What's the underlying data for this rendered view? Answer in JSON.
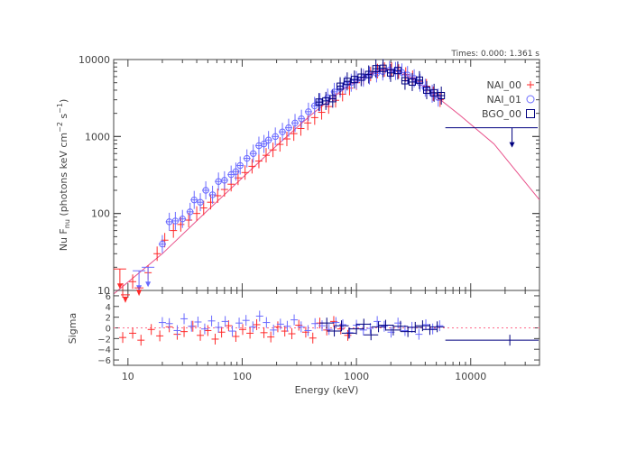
{
  "chart_data": [
    {
      "type": "scatter",
      "panel": "spectrum",
      "times_label": "Times: 0.000: 1.361 s",
      "ylabel": "Nu F",
      "ylabel_sub": "nu",
      "ylabel_units": " (photons keV cm",
      "ylabel_exp1": "−2",
      "ylabel_s": " s",
      "ylabel_exp2": "−1",
      "ylabel_close": ")",
      "x_scale": "log",
      "y_scale": "log",
      "xlim": [
        7.5,
        40000
      ],
      "ylim": [
        10,
        10000
      ],
      "y_ticks": [
        10,
        100,
        1000,
        10000
      ],
      "y_tick_labels": [
        "10",
        "100",
        "1000",
        "10000"
      ],
      "legend_position": "top-right",
      "series": [
        {
          "name": "NAI_00",
          "marker": "cross",
          "color": "#ff2a2a",
          "points": [
            [
              9,
              10
            ],
            [
              11,
              13
            ],
            [
              15,
              17
            ],
            [
              18,
              30
            ],
            [
              21,
              45
            ],
            [
              25,
              60
            ],
            [
              29,
              72
            ],
            [
              34,
              82
            ],
            [
              40,
              100
            ],
            [
              46,
              118
            ],
            [
              53,
              140
            ],
            [
              61,
              170
            ],
            [
              70,
              205
            ],
            [
              80,
              240
            ],
            [
              92,
              290
            ],
            [
              106,
              340
            ],
            [
              122,
              410
            ],
            [
              140,
              480
            ],
            [
              162,
              570
            ],
            [
              186,
              670
            ],
            [
              214,
              790
            ],
            [
              246,
              930
            ],
            [
              283,
              1090
            ],
            [
              326,
              1270
            ],
            [
              375,
              1500
            ],
            [
              431,
              1760
            ],
            [
              496,
              2060
            ],
            [
              571,
              2450
            ],
            [
              657,
              2950
            ],
            [
              756,
              3550
            ],
            [
              870,
              4250
            ],
            [
              1000,
              5000
            ],
            [
              1150,
              5800
            ],
            [
              1330,
              6500
            ],
            [
              1530,
              7100
            ],
            [
              1760,
              7400
            ],
            [
              2030,
              7400
            ],
            [
              2340,
              7000
            ],
            [
              2700,
              6400
            ],
            [
              3100,
              5800
            ],
            [
              3570,
              5200
            ],
            [
              4100,
              4500
            ],
            [
              4700,
              3600
            ],
            [
              5400,
              3000
            ]
          ]
        },
        {
          "name": "NAI_01",
          "marker": "circle",
          "color": "#6b6bff",
          "points": [
            [
              20,
              40
            ],
            [
              23,
              78
            ],
            [
              26,
              80
            ],
            [
              30,
              85
            ],
            [
              35,
              105
            ],
            [
              38,
              150
            ],
            [
              43,
              140
            ],
            [
              48,
              200
            ],
            [
              55,
              175
            ],
            [
              62,
              260
            ],
            [
              70,
              270
            ],
            [
              80,
              320
            ],
            [
              88,
              350
            ],
            [
              96,
              420
            ],
            [
              110,
              520
            ],
            [
              125,
              600
            ],
            [
              140,
              760
            ],
            [
              155,
              800
            ],
            [
              170,
              900
            ],
            [
              195,
              1000
            ],
            [
              225,
              1150
            ],
            [
              255,
              1300
            ],
            [
              290,
              1500
            ],
            [
              330,
              1700
            ],
            [
              380,
              2100
            ],
            [
              430,
              2500
            ],
            [
              480,
              2800
            ],
            [
              560,
              3200
            ],
            [
              640,
              3800
            ],
            [
              720,
              4200
            ],
            [
              800,
              4700
            ],
            [
              900,
              5000
            ],
            [
              1000,
              5400
            ],
            [
              1150,
              5800
            ],
            [
              1300,
              6200
            ],
            [
              1500,
              6600
            ],
            [
              1700,
              7000
            ],
            [
              1950,
              7300
            ],
            [
              2200,
              7100
            ],
            [
              2500,
              6800
            ],
            [
              2800,
              6300
            ],
            [
              3200,
              5700
            ],
            [
              3600,
              5000
            ],
            [
              4000,
              4300
            ],
            [
              4600,
              3600
            ],
            [
              5200,
              3200
            ]
          ]
        },
        {
          "name": "BGO_00",
          "marker": "square",
          "color": "#00007f",
          "points": [
            [
              470,
              2800
            ],
            [
              540,
              2900
            ],
            [
              620,
              3100
            ],
            [
              720,
              4500
            ],
            [
              830,
              5200
            ],
            [
              960,
              5500
            ],
            [
              1100,
              5900
            ],
            [
              1280,
              6400
            ],
            [
              1480,
              7600
            ],
            [
              1710,
              7700
            ],
            [
              1990,
              6700
            ],
            [
              2300,
              7200
            ],
            [
              2660,
              5300
            ],
            [
              3080,
              5100
            ],
            [
              3560,
              5400
            ],
            [
              4120,
              4000
            ],
            [
              4780,
              3700
            ],
            [
              5530,
              3400
            ]
          ]
        }
      ],
      "upper_limits": [
        {
          "series": "NAI_00",
          "x": 8.5,
          "y": 19
        },
        {
          "series": "NAI_01",
          "x": 12.5,
          "y": 18
        },
        {
          "series": "NAI_01",
          "x": 15,
          "y": 20
        },
        {
          "series": "BGO_00",
          "x": 23000,
          "y": 1300
        }
      ],
      "model_curve": {
        "name": "model",
        "color": "#e8508a",
        "points": [
          [
            7.5,
            9
          ],
          [
            20,
            30
          ],
          [
            50,
            110
          ],
          [
            100,
            290
          ],
          [
            200,
            760
          ],
          [
            400,
            1900
          ],
          [
            800,
            4300
          ],
          [
            1300,
            6500
          ],
          [
            1800,
            7600
          ],
          [
            2500,
            6900
          ],
          [
            4000,
            4300
          ],
          [
            8000,
            1900
          ],
          [
            16000,
            800
          ],
          [
            40000,
            150
          ]
        ]
      }
    },
    {
      "type": "scatter",
      "panel": "residuals",
      "xlabel": "Energy (keV)",
      "ylabel": "Sigma",
      "x_scale": "log",
      "xlim": [
        7.5,
        40000
      ],
      "ylim": [
        -7,
        7
      ],
      "y_ticks": [
        -6,
        -4,
        -2,
        0,
        2,
        4,
        6
      ],
      "y_tick_labels": [
        "−6",
        "−4",
        "−2",
        "0",
        "2",
        "4",
        "6"
      ],
      "x_ticks": [
        10,
        100,
        1000,
        10000
      ],
      "x_tick_labels": [
        "10",
        "100",
        "1000",
        "10000"
      ],
      "zero_line_color": "#ff6a8a",
      "series": [
        {
          "name": "NAI_00",
          "color": "#ff2a2a",
          "points": [
            [
              9,
              -1.8
            ],
            [
              11,
              -1.0
            ],
            [
              13,
              -2.3
            ],
            [
              16,
              -0.3
            ],
            [
              19,
              -1.5
            ],
            [
              23,
              0.2
            ],
            [
              27,
              -1.2
            ],
            [
              31,
              -0.7
            ],
            [
              37,
              0.3
            ],
            [
              43,
              -1.4
            ],
            [
              50,
              -0.5
            ],
            [
              58,
              -2.1
            ],
            [
              66,
              -0.8
            ],
            [
              76,
              0.4
            ],
            [
              88,
              -1.6
            ],
            [
              101,
              -0.3
            ],
            [
              117,
              -1.0
            ],
            [
              134,
              0.6
            ],
            [
              155,
              -0.9
            ],
            [
              178,
              -1.7
            ],
            [
              205,
              0.2
            ],
            [
              236,
              -0.6
            ],
            [
              272,
              -1.1
            ],
            [
              313,
              0.5
            ],
            [
              360,
              -0.8
            ],
            [
              415,
              -1.9
            ],
            [
              478,
              0.9
            ],
            [
              550,
              -0.4
            ],
            [
              633,
              1.2
            ],
            [
              729,
              -0.2
            ],
            [
              840,
              -1.4
            ]
          ]
        },
        {
          "name": "NAI_01",
          "color": "#6b6bff",
          "points": [
            [
              20,
              1.0
            ],
            [
              23,
              0.8
            ],
            [
              27,
              -0.5
            ],
            [
              31,
              1.7
            ],
            [
              36,
              0.3
            ],
            [
              41,
              1.1
            ],
            [
              47,
              -0.2
            ],
            [
              54,
              1.3
            ],
            [
              62,
              0.1
            ],
            [
              71,
              1.2
            ],
            [
              82,
              -0.6
            ],
            [
              94,
              0.9
            ],
            [
              108,
              1.4
            ],
            [
              124,
              0.2
            ],
            [
              142,
              2.2
            ],
            [
              163,
              1.0
            ],
            [
              188,
              -0.4
            ],
            [
              216,
              0.7
            ],
            [
              248,
              0.3
            ],
            [
              285,
              1.5
            ],
            [
              328,
              0.2
            ],
            [
              377,
              -0.5
            ],
            [
              434,
              0.8
            ],
            [
              500,
              0.4
            ],
            [
              575,
              -0.3
            ],
            [
              661,
              1.0
            ],
            [
              760,
              0.6
            ],
            [
              874,
              -0.9
            ],
            [
              1000,
              0.5
            ],
            [
              1150,
              -0.4
            ],
            [
              1320,
              -0.1
            ],
            [
              1520,
              1.2
            ],
            [
              1750,
              0.3
            ],
            [
              2010,
              -0.8
            ],
            [
              2310,
              0.9
            ],
            [
              2660,
              -0.5
            ],
            [
              3060,
              0.1
            ],
            [
              3520,
              -1.2
            ],
            [
              4050,
              0.6
            ],
            [
              4650,
              -0.2
            ],
            [
              5350,
              0.4
            ]
          ]
        },
        {
          "name": "BGO_00",
          "color": "#00007f",
          "points": [
            [
              550,
              0.9
            ],
            [
              640,
              -0.6
            ],
            [
              740,
              0.4
            ],
            [
              860,
              -1.0
            ],
            [
              1000,
              -0.2
            ],
            [
              1160,
              0.7
            ],
            [
              1340,
              -1.3
            ],
            [
              1560,
              0.2
            ],
            [
              1800,
              0.5
            ],
            [
              2100,
              -0.4
            ],
            [
              2430,
              0.3
            ],
            [
              2820,
              -0.7
            ],
            [
              3270,
              0.1
            ],
            [
              3790,
              0.4
            ],
            [
              4390,
              -0.3
            ],
            [
              5090,
              0.2
            ]
          ]
        }
      ],
      "wide_points": [
        {
          "series": "BGO_00",
          "x": 22000,
          "xmin": 6000,
          "xmax": 40000,
          "y": -2.3
        }
      ],
      "upper_limits": [
        {
          "series": "NAI_00",
          "x": 9.5,
          "y": 5.5
        },
        {
          "series": "NAI_00",
          "x": 12.5,
          "y": 6.8
        }
      ]
    }
  ]
}
